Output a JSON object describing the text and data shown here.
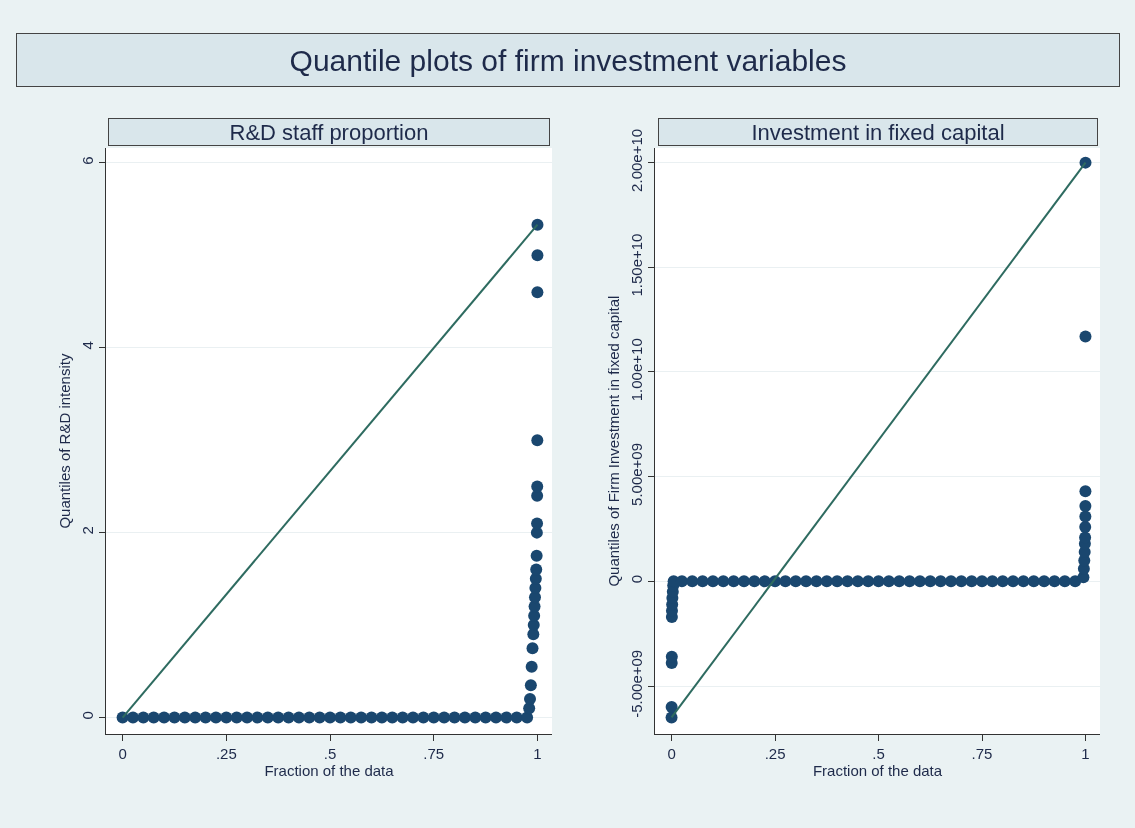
{
  "chart_data": [
    {
      "type": "scatter",
      "title": "Quantile plots of firm investment variables",
      "subtitle": "R&D staff proportion",
      "xlabel": "Fraction of the data",
      "ylabel": "Quantiles of R&D intensity",
      "series": [
        {
          "type": "scatter",
          "color": "#1a476f",
          "x": [
            0,
            0.025,
            0.05,
            0.075,
            0.1,
            0.125,
            0.15,
            0.175,
            0.2,
            0.225,
            0.25,
            0.275,
            0.3,
            0.325,
            0.35,
            0.375,
            0.4,
            0.425,
            0.45,
            0.475,
            0.5,
            0.525,
            0.55,
            0.575,
            0.6,
            0.625,
            0.65,
            0.675,
            0.7,
            0.725,
            0.75,
            0.775,
            0.8,
            0.825,
            0.85,
            0.875,
            0.9,
            0.925,
            0.95,
            0.975,
            0.98,
            0.982,
            0.984,
            0.986,
            0.988,
            0.99,
            0.991,
            0.992,
            0.993,
            0.994,
            0.995,
            0.996,
            0.997,
            0.998,
            0.9985,
            0.999,
            0.9992,
            0.9994,
            0.9996,
            0.9998,
            0.9999,
            1
          ],
          "values": [
            0,
            0,
            0,
            0,
            0,
            0,
            0,
            0,
            0,
            0,
            0,
            0,
            0,
            0,
            0,
            0,
            0,
            0,
            0,
            0,
            0,
            0,
            0,
            0,
            0,
            0,
            0,
            0,
            0,
            0,
            0,
            0,
            0,
            0,
            0,
            0,
            0,
            0,
            0,
            0,
            0.1,
            0.2,
            0.35,
            0.55,
            0.75,
            0.9,
            1.0,
            1.1,
            1.2,
            1.3,
            1.4,
            1.5,
            1.6,
            1.75,
            2.0,
            2.1,
            2.4,
            2.5,
            3.0,
            4.6,
            5.0,
            5.33
          ]
        },
        {
          "type": "line",
          "marker": "none",
          "color": "#2e6b60",
          "x": [
            0,
            1
          ],
          "values": [
            0,
            5.33
          ]
        }
      ],
      "marker": "circle",
      "grid": "y",
      "xlim": [
        -0.04,
        1.035
      ],
      "xticks": [
        0,
        {
          "value": 0.25,
          "label": ".25"
        },
        {
          "value": 0.5,
          "label": ".5"
        },
        {
          "value": 0.75,
          "label": ".75"
        },
        1
      ],
      "ylim": [
        -0.18,
        6.16
      ],
      "yticks": [
        0,
        2,
        4,
        6
      ]
    },
    {
      "type": "scatter",
      "subtitle": "Investment in fixed capital",
      "xlabel": "Fraction of the data",
      "ylabel": "Quantiles of Firm Investment in fixed capital",
      "series": [
        {
          "type": "scatter",
          "color": "#1a476f",
          "x": [
            0,
            0.0002,
            0.0004,
            0.0006,
            0.0008,
            0.001,
            0.0015,
            0.002,
            0.003,
            0.004,
            0.005,
            0.025,
            0.05,
            0.075,
            0.1,
            0.125,
            0.15,
            0.175,
            0.2,
            0.225,
            0.25,
            0.275,
            0.3,
            0.325,
            0.35,
            0.375,
            0.4,
            0.425,
            0.45,
            0.475,
            0.5,
            0.525,
            0.55,
            0.575,
            0.6,
            0.625,
            0.65,
            0.675,
            0.7,
            0.725,
            0.75,
            0.775,
            0.8,
            0.825,
            0.85,
            0.875,
            0.9,
            0.925,
            0.95,
            0.975,
            0.995,
            0.996,
            0.997,
            0.998,
            0.9985,
            0.999,
            0.9993,
            0.9996,
            0.9997,
            0.9998,
            0.9999,
            1
          ],
          "values": [
            -6500000000.0,
            -6000000000.0,
            -3900000000.0,
            -3600000000.0,
            -1700000000.0,
            -1400000000.0,
            -1100000000.0,
            -800000000.0,
            -500000000.0,
            -200000000.0,
            0,
            0,
            0,
            0,
            0,
            0,
            0,
            0,
            0,
            0,
            0,
            0,
            0,
            0,
            0,
            0,
            0,
            0,
            0,
            0,
            0,
            0,
            0,
            0,
            0,
            0,
            0,
            0,
            0,
            0,
            0,
            0,
            0,
            0,
            0,
            0,
            0,
            0,
            0,
            0,
            200000000.0,
            600000000.0,
            1000000000.0,
            1400000000.0,
            1800000000.0,
            2100000000.0,
            2600000000.0,
            3100000000.0,
            3600000000.0,
            4300000000.0,
            11700000000.0,
            20000000000.0
          ]
        },
        {
          "type": "line",
          "marker": "none",
          "color": "#2e6b60",
          "x": [
            0,
            1
          ],
          "values": [
            -6500000000.0,
            20000000000.0
          ]
        }
      ],
      "marker": "circle",
      "grid": "y",
      "xlim": [
        -0.04,
        1.035
      ],
      "xticks": [
        0,
        {
          "value": 0.25,
          "label": ".25"
        },
        {
          "value": 0.5,
          "label": ".5"
        },
        {
          "value": 0.75,
          "label": ".75"
        },
        1
      ],
      "ylim": [
        -7300000000.0,
        20700000000.0
      ],
      "yticks": [
        {
          "value": -5000000000.0,
          "label": "-5.00e+09"
        },
        0,
        {
          "value": 5000000000.0,
          "label": "5.00e+09"
        },
        {
          "value": 10000000000.0,
          "label": "1.00e+10"
        },
        {
          "value": 15000000000.0,
          "label": "1.50e+10"
        },
        {
          "value": 20000000000.0,
          "label": "2.00e+10"
        }
      ]
    }
  ]
}
